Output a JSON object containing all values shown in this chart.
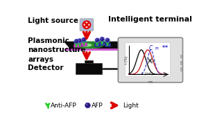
{
  "bg_color": "#ffffff",
  "light_source_label": "Light source",
  "plasmonic_label": "Plasmonic\nnanostructure\narrays",
  "detector_label": "Detector",
  "intelligent_label": "Intelligent terminal",
  "legend_items": [
    "Anti-AFP",
    "AFP",
    "Light"
  ],
  "light_source_box_color": "#b0bcd8",
  "arrow_color": "#dd0000",
  "antibody_color": "#22cc22",
  "antigen_color": "#2a1a7a",
  "antigen_highlight": "#5050cc",
  "nanostructure_color_1": "#bb44bb",
  "nanostructure_color_2": "#3344aa",
  "platform_top_color": "#0a0a0a",
  "platform_side_color": "#551155",
  "platform_bottom_color": "#cc55cc",
  "detector_color": "#0a0a0a",
  "phone_bg": "#e0e0e0",
  "phone_border": "#999999",
  "phone_screen_bg": "#ffffff",
  "curve1_color": "#111111",
  "curve2_color": "#cc2222",
  "curve3_color": "#3333cc",
  "formula_color": "#2222cc",
  "cable_color": "#111111",
  "axis_label_x": "λ (nm)",
  "axis_label_y": "I (%)",
  "glow_color": "#44ff44",
  "glow_alpha": 0.5
}
